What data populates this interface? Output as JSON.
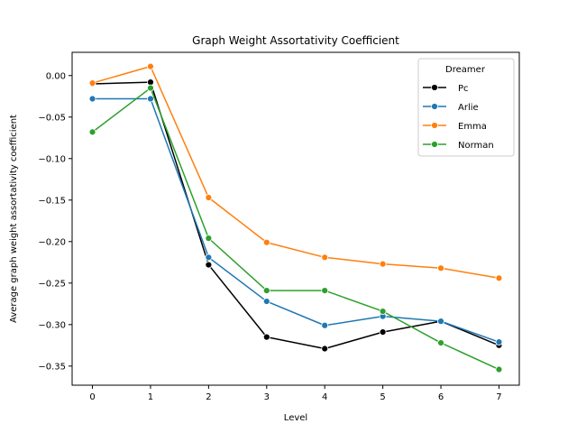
{
  "chart_data": {
    "type": "line",
    "title": "Graph Weight Assortativity Coefficient",
    "xlabel": "Level",
    "ylabel": "Average graph weight assortativity coefficient",
    "x": [
      0,
      1,
      2,
      3,
      4,
      5,
      6,
      7
    ],
    "xlim": [
      -0.35,
      7.35
    ],
    "ylim": [
      -0.373,
      0.028
    ],
    "xticks": [
      "0",
      "1",
      "2",
      "3",
      "4",
      "5",
      "6",
      "7"
    ],
    "yticks": [
      0.0,
      -0.05,
      -0.1,
      -0.15,
      -0.2,
      -0.25,
      -0.3,
      -0.35
    ],
    "ytick_labels": [
      "0.00",
      "−0.05",
      "−0.10",
      "−0.15",
      "−0.20",
      "−0.25",
      "−0.30",
      "−0.35"
    ],
    "grid": false,
    "legend": {
      "title": "Dreamer",
      "position": "top-right"
    },
    "series": [
      {
        "name": "Pc",
        "color": "#000000",
        "values": [
          -0.01,
          -0.008,
          -0.228,
          -0.315,
          -0.329,
          -0.309,
          -0.296,
          -0.325
        ]
      },
      {
        "name": "Arlie",
        "color": "#1f77b4",
        "values": [
          -0.028,
          -0.028,
          -0.219,
          -0.272,
          -0.301,
          -0.29,
          -0.296,
          -0.321
        ]
      },
      {
        "name": "Emma",
        "color": "#ff7f0e",
        "values": [
          -0.009,
          0.011,
          -0.147,
          -0.201,
          -0.219,
          -0.227,
          -0.232,
          -0.244
        ]
      },
      {
        "name": "Norman",
        "color": "#2ca02c",
        "values": [
          -0.068,
          -0.015,
          -0.196,
          -0.259,
          -0.259,
          -0.284,
          -0.322,
          -0.354
        ]
      }
    ]
  }
}
